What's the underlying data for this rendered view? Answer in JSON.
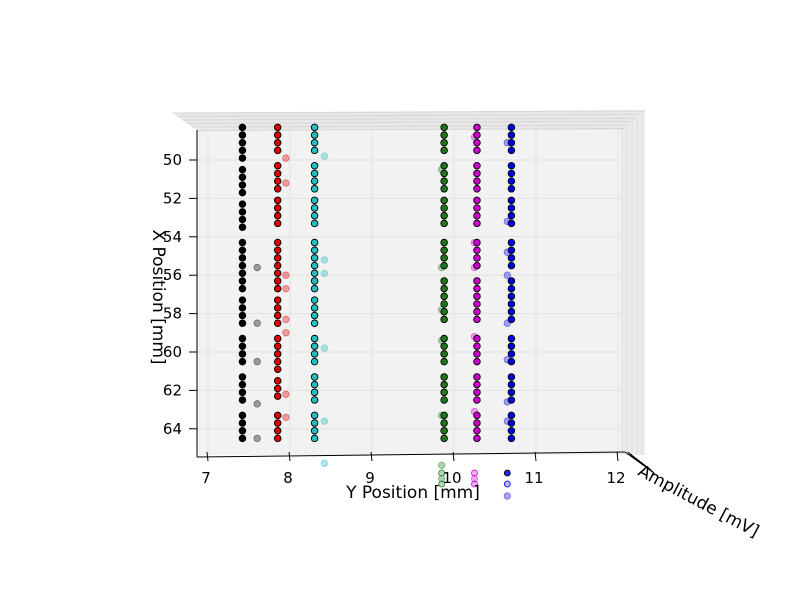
{
  "chart_data": {
    "type": "scatter",
    "projection": "3d",
    "xlabel": "Y Position [mm]",
    "ylabel": "X Position [mm]",
    "zlabel": "Amplitude [mV]",
    "xlim": [
      6.9,
      12
    ],
    "ylim": [
      48,
      65.5
    ],
    "x_ticks": [
      7,
      8,
      9,
      10,
      11,
      12
    ],
    "y_ticks": [
      50,
      52,
      54,
      56,
      58,
      60,
      62,
      64
    ],
    "grid": true,
    "colors": {
      "black": "#000000",
      "red": "#dd0000",
      "cyan": "#20c0c0",
      "green": "#1a7a1a",
      "magenta": "#cc00cc",
      "blue": "#0000dd"
    },
    "series": [
      {
        "color": "black",
        "y_position": 7.42,
        "x_positions": [
          48.3,
          48.7,
          49.1,
          49.5,
          49.9,
          50.5,
          50.9,
          51.3,
          51.7,
          52.3,
          52.7,
          53.1,
          53.5,
          54.3,
          54.7,
          55.1,
          55.5,
          55.9,
          56.3,
          56.7,
          57.3,
          57.7,
          58.1,
          58.5,
          59.3,
          59.7,
          60.1,
          60.5,
          61.3,
          61.7,
          62.1,
          62.5,
          63.3,
          63.7,
          64.1,
          64.5
        ]
      },
      {
        "color": "red",
        "y_position": 7.85,
        "x_positions": [
          48.3,
          48.7,
          49.1,
          49.5,
          50.3,
          50.7,
          51.1,
          51.5,
          52.1,
          52.5,
          52.9,
          53.3,
          54.3,
          54.7,
          55.1,
          55.5,
          55.9,
          56.3,
          56.7,
          57.3,
          57.7,
          58.1,
          58.5,
          59.3,
          59.7,
          60.1,
          60.5,
          60.9,
          61.5,
          61.9,
          62.3,
          63.3,
          63.7,
          64.1,
          64.5
        ]
      },
      {
        "color": "cyan",
        "y_position": 8.3,
        "x_positions": [
          48.3,
          48.7,
          49.1,
          49.5,
          50.3,
          50.7,
          51.1,
          51.5,
          52.1,
          52.5,
          52.9,
          53.3,
          54.3,
          54.7,
          55.1,
          55.5,
          55.9,
          56.3,
          56.7,
          57.3,
          57.7,
          58.1,
          58.5,
          59.3,
          59.7,
          60.1,
          60.5,
          61.3,
          61.7,
          62.1,
          62.5,
          63.3,
          63.7,
          64.1,
          64.5
        ]
      },
      {
        "color": "green",
        "y_position": 9.88,
        "x_positions": [
          48.3,
          48.7,
          49.1,
          49.5,
          50.3,
          50.7,
          51.1,
          51.5,
          52.1,
          52.5,
          52.9,
          53.3,
          54.3,
          54.7,
          55.1,
          55.5,
          56.3,
          56.7,
          57.1,
          57.5,
          57.9,
          58.3,
          59.3,
          59.7,
          60.1,
          60.5,
          61.3,
          61.7,
          62.1,
          62.5,
          63.3,
          63.7,
          64.1,
          64.5
        ]
      },
      {
        "color": "magenta",
        "y_position": 10.28,
        "x_positions": [
          48.3,
          48.7,
          49.1,
          49.5,
          50.3,
          50.7,
          51.1,
          51.5,
          52.1,
          52.5,
          52.9,
          53.3,
          54.3,
          54.7,
          55.1,
          55.5,
          56.3,
          56.7,
          57.1,
          57.5,
          57.9,
          58.3,
          59.3,
          59.7,
          60.1,
          60.5,
          61.3,
          61.7,
          62.1,
          62.5,
          63.3,
          63.7,
          64.1,
          64.5
        ]
      },
      {
        "color": "blue",
        "y_position": 10.7,
        "x_positions": [
          48.3,
          48.7,
          49.1,
          49.5,
          50.3,
          50.7,
          51.1,
          51.5,
          52.1,
          52.5,
          52.9,
          53.3,
          54.3,
          54.7,
          55.1,
          55.5,
          56.3,
          56.7,
          57.1,
          57.5,
          57.9,
          58.3,
          59.3,
          59.7,
          60.1,
          60.5,
          61.3,
          61.7,
          62.1,
          62.5,
          63.3,
          63.7,
          64.1,
          64.5
        ]
      }
    ],
    "faded_points": [
      {
        "color": "black",
        "y_position": 7.6,
        "x_positions": [
          55.6,
          58.5,
          60.5,
          62.7,
          64.5
        ]
      },
      {
        "color": "red",
        "y_position": 7.95,
        "x_positions": [
          49.9,
          51.2,
          56.0,
          56.7,
          58.3,
          59.0,
          62.2,
          63.4
        ]
      },
      {
        "color": "cyan",
        "y_position": 8.42,
        "x_positions": [
          49.8,
          55.2,
          55.9,
          59.8,
          63.6,
          65.8
        ]
      },
      {
        "color": "green",
        "y_position": 9.85,
        "x_positions": [
          50.5,
          55.6,
          57.8,
          59.4,
          63.3,
          65.9,
          66.6
        ]
      },
      {
        "color": "magenta",
        "y_position": 10.25,
        "x_positions": [
          48.8,
          54.3,
          55.6,
          59.2,
          63.1,
          66.6
        ]
      },
      {
        "color": "blue",
        "y_position": 10.65,
        "x_positions": [
          49.1,
          53.2,
          54.8,
          56.0,
          58.5,
          60.4,
          62.6,
          63.6,
          67.5
        ]
      }
    ],
    "legend_markers": [
      {
        "color": "green",
        "y_position": 9.85
      },
      {
        "color": "magenta",
        "y_position": 10.25
      },
      {
        "color": "blue",
        "y_position": 10.65
      }
    ]
  }
}
